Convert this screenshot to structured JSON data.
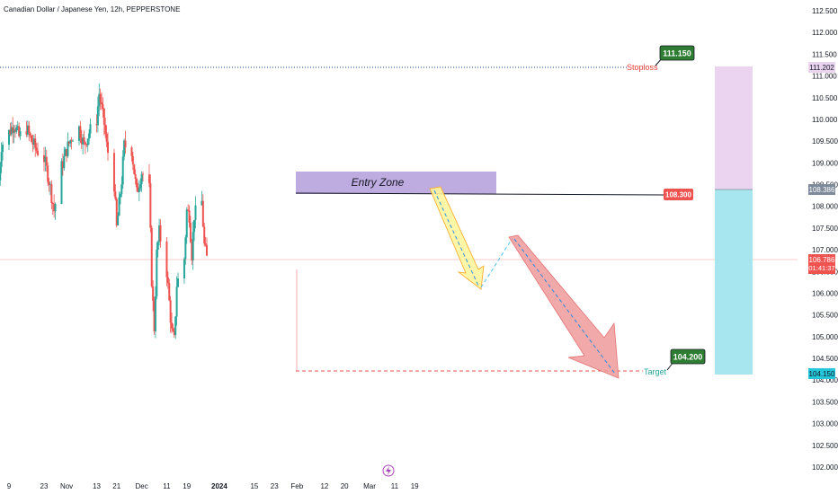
{
  "chart_data": {
    "type": "candlestick",
    "title": "Canadian Dollar / Japanese Yen, 12h, PEPPERSTONE",
    "ylim": [
      102.0,
      112.5
    ],
    "y_ticks": [
      "112.500",
      "112.000",
      "111.500",
      "111.000",
      "110.500",
      "110.000",
      "109.500",
      "109.000",
      "108.500",
      "108.000",
      "107.500",
      "107.000",
      "106.500",
      "106.000",
      "105.500",
      "105.000",
      "104.500",
      "104.000",
      "103.500",
      "103.000",
      "102.500",
      "102.000"
    ],
    "x_ticks": [
      {
        "label": "9",
        "date": "2023-10-09"
      },
      {
        "label": "23",
        "date": "2023-10-23"
      },
      {
        "label": "Nov",
        "date": "2023-11-01"
      },
      {
        "label": "13",
        "date": "2023-11-13"
      },
      {
        "label": "21",
        "date": "2023-11-21"
      },
      {
        "label": "Dec",
        "date": "2023-12-01"
      },
      {
        "label": "11",
        "date": "2023-12-11"
      },
      {
        "label": "19",
        "date": "2023-12-19"
      },
      {
        "label": "2024",
        "date": "2024-01-01"
      },
      {
        "label": "15",
        "date": "2024-01-15"
      },
      {
        "label": "23",
        "date": "2024-01-23"
      },
      {
        "label": "Feb",
        "date": "2024-02-01"
      },
      {
        "label": "12",
        "date": "2024-02-12"
      },
      {
        "label": "20",
        "date": "2024-02-20"
      },
      {
        "label": "Mar",
        "date": "2024-03-01"
      },
      {
        "label": "11",
        "date": "2024-03-11"
      },
      {
        "label": "19",
        "date": "2024-03-19"
      }
    ],
    "price_path_dates": [
      "2023-10-05",
      "2023-10-06",
      "2023-10-09",
      "2023-10-11",
      "2023-10-13",
      "2023-10-16",
      "2023-10-18",
      "2023-10-20",
      "2023-10-23",
      "2023-10-25",
      "2023-10-27",
      "2023-10-30",
      "2023-11-01",
      "2023-11-03",
      "2023-11-06",
      "2023-11-08",
      "2023-11-10",
      "2023-11-13",
      "2023-11-14",
      "2023-11-16",
      "2023-11-17",
      "2023-11-20",
      "2023-11-21",
      "2023-11-23",
      "2023-11-24",
      "2023-11-27",
      "2023-11-29",
      "2023-12-01",
      "2023-12-04",
      "2023-12-05",
      "2023-12-06",
      "2023-12-07",
      "2023-12-08",
      "2023-12-11",
      "2023-12-13",
      "2023-12-14",
      "2023-12-15",
      "2023-12-18",
      "2023-12-19",
      "2023-12-20",
      "2023-12-21",
      "2023-12-22",
      "2023-12-25",
      "2023-12-26",
      "2023-12-27"
    ],
    "price_path_values": [
      108.6,
      109.4,
      109.7,
      109.9,
      109.6,
      109.8,
      109.5,
      109.3,
      109.1,
      108.6,
      107.9,
      108.9,
      109.3,
      109.6,
      109.8,
      109.4,
      109.7,
      110.0,
      110.6,
      109.9,
      109.4,
      108.5,
      107.5,
      108.6,
      109.4,
      109.3,
      108.3,
      108.8,
      108.4,
      106.3,
      105.2,
      106.9,
      107.4,
      106.5,
      105.1,
      104.9,
      106.2,
      106.8,
      107.9,
      107.8,
      106.9,
      107.8,
      108.1,
      107.1,
      106.8
    ],
    "current_price": "106.786",
    "countdown": "01:41:37",
    "position": {
      "entry": "108.386",
      "stop_price_tag": "111.202",
      "target_price_tag": "104.150"
    },
    "annotations": {
      "entry_zone_label": "Entry Zone",
      "entry_line_value": "108.300",
      "stoploss_label": "Stoploss",
      "stoploss_value": "111.150",
      "target_label": "Target",
      "target_value": "104.200"
    },
    "colors": {
      "bull": "#26a69a",
      "bear": "#ef5350",
      "entry_zone": "#b39ddb",
      "profit_zone": "#a8e6ef",
      "loss_zone": "#ead4f0",
      "stoploss": "#e53935",
      "target_box": "#2e7d32",
      "yellow_arrow": "#fff59d",
      "red_arrow": "#ef9a9a",
      "dashed_path": "#4fc3f7"
    }
  }
}
